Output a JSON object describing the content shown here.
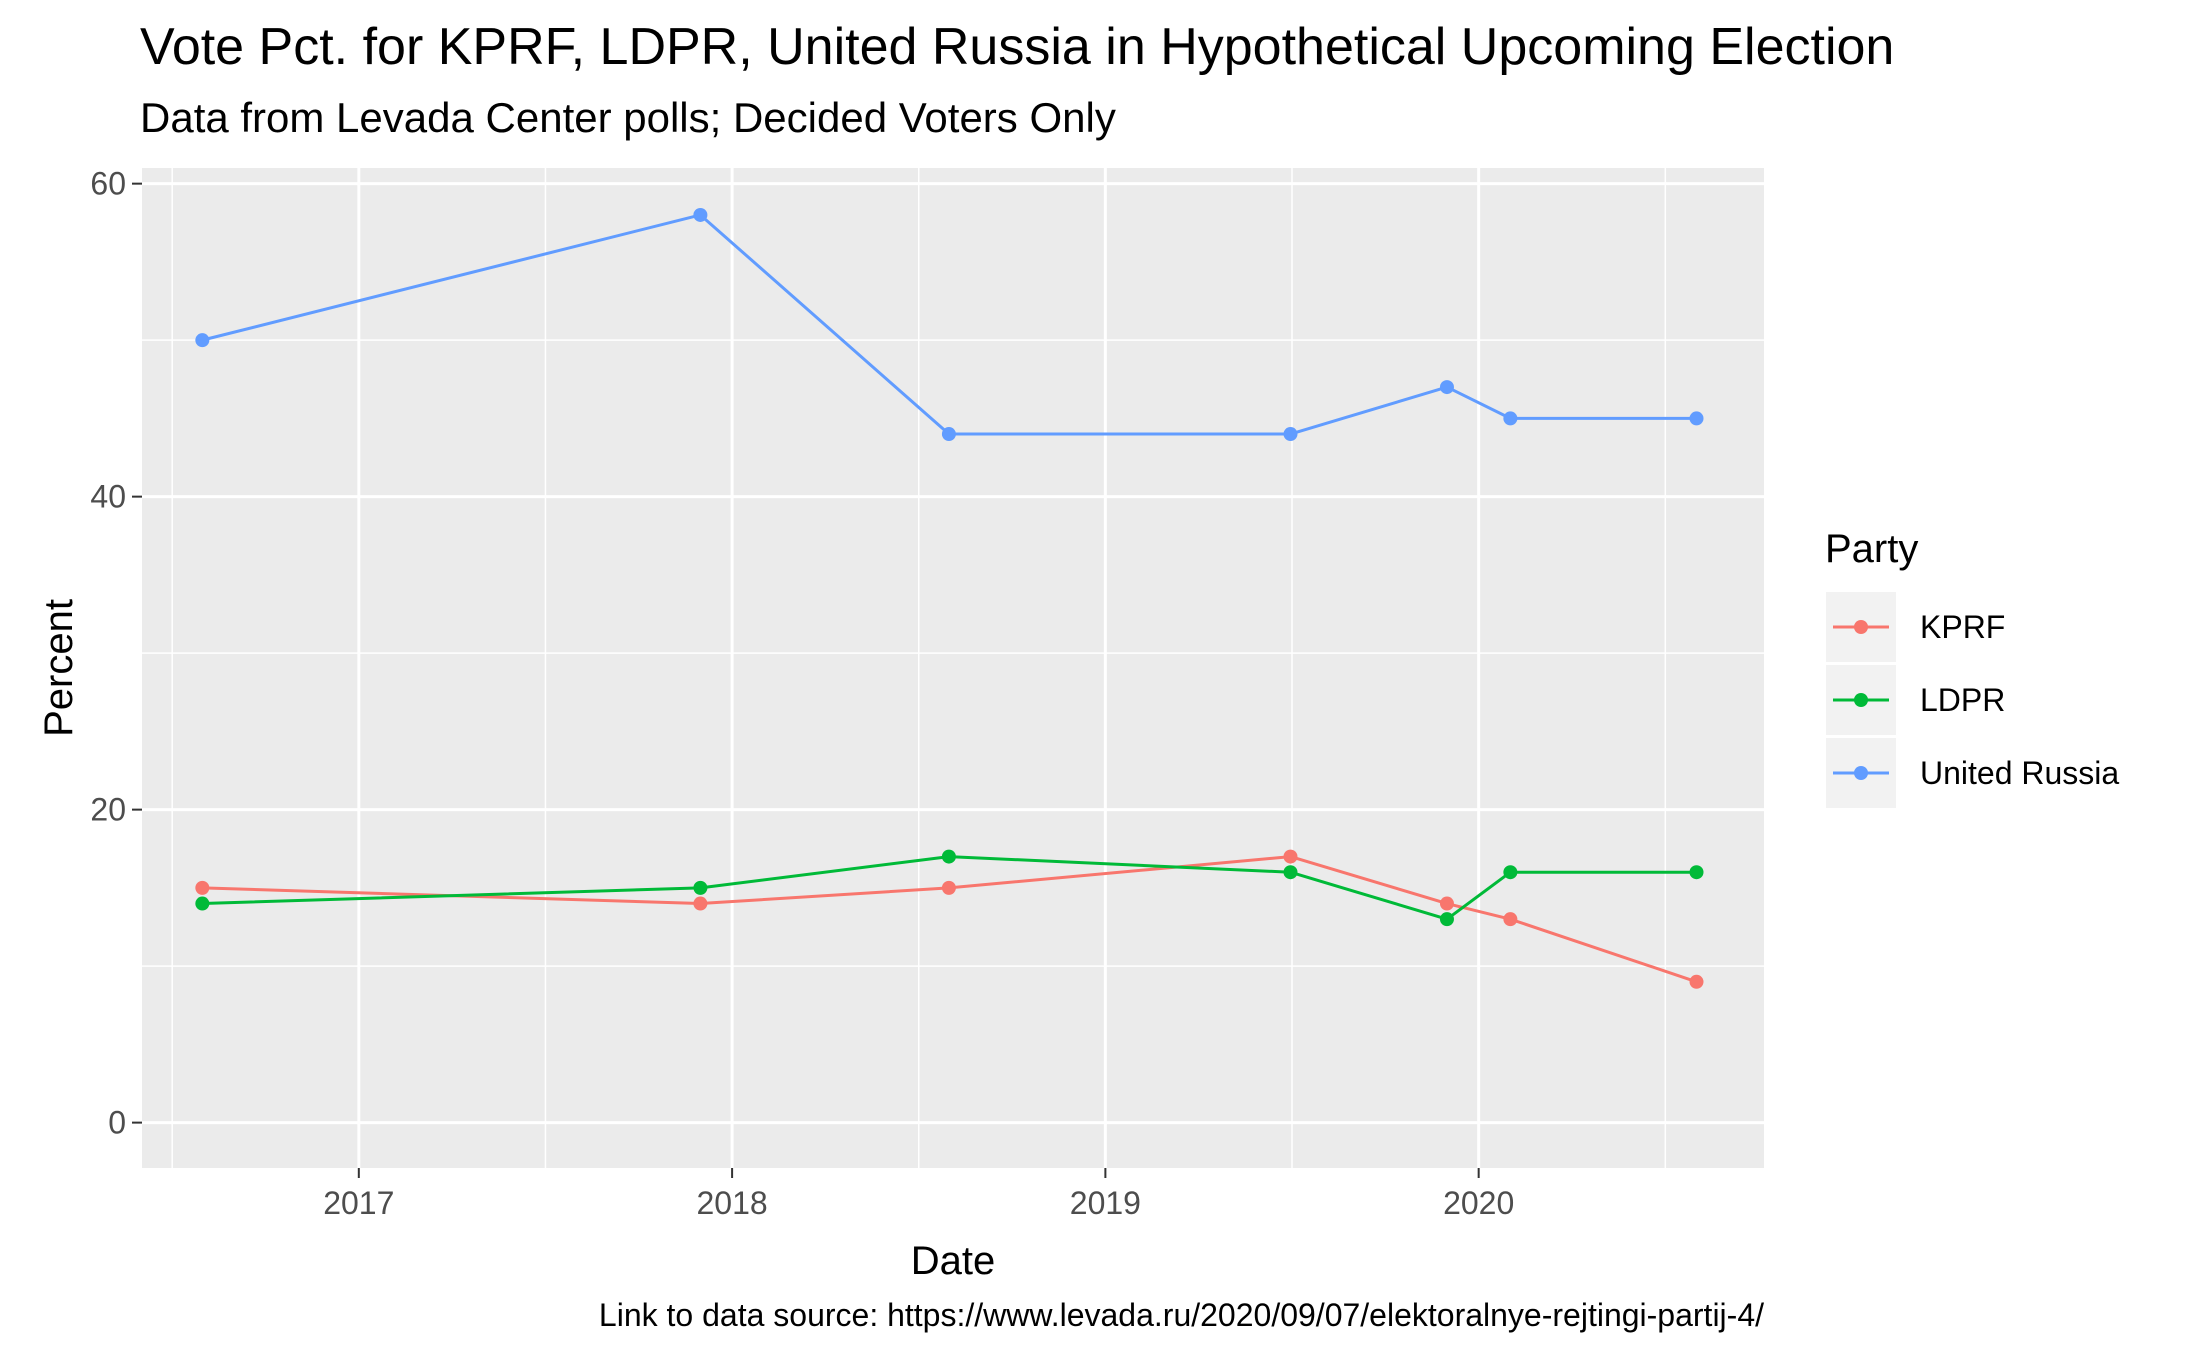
{
  "chart_data": {
    "type": "line",
    "title": "Vote Pct. for KPRF, LDPR, United Russia in Hypothetical Upcoming Election",
    "subtitle": "Data from Levada Center polls; Decided Voters Only",
    "xlabel": "Date",
    "ylabel": "Percent",
    "caption": "Link to data source: https://www.levada.ru/2020/09/07/elektoralnye-rejtingi-partij-4/",
    "x_type": "date",
    "xlim": [
      "2016-06-03",
      "2020-10-06"
    ],
    "ylim": [
      -2.9,
      61.0
    ],
    "x_ticks": [
      {
        "date": "2017-01-01",
        "label": "2017"
      },
      {
        "date": "2018-01-01",
        "label": "2018"
      },
      {
        "date": "2019-01-01",
        "label": "2019"
      },
      {
        "date": "2020-01-01",
        "label": "2020"
      }
    ],
    "y_ticks": [
      {
        "value": 0,
        "label": "0"
      },
      {
        "value": 20,
        "label": "20"
      },
      {
        "value": 40,
        "label": "40"
      },
      {
        "value": 60,
        "label": "60"
      }
    ],
    "grid": true,
    "panel_background": "#ebebeb",
    "legend": {
      "title": "Party",
      "position": "right"
    },
    "x": [
      "2016-08-01",
      "2017-12-01",
      "2018-08-01",
      "2019-07-01",
      "2019-12-01",
      "2020-02-01",
      "2020-08-01"
    ],
    "series": [
      {
        "name": "KPRF",
        "color": "#f8766d",
        "values": [
          15,
          14,
          15,
          17,
          14,
          13,
          9
        ]
      },
      {
        "name": "LDPR",
        "color": "#00ba38",
        "values": [
          14,
          15,
          17,
          16,
          13,
          16,
          16
        ]
      },
      {
        "name": "United Russia",
        "color": "#619cff",
        "values": [
          50,
          58,
          44,
          44,
          47,
          45,
          45
        ]
      }
    ]
  }
}
